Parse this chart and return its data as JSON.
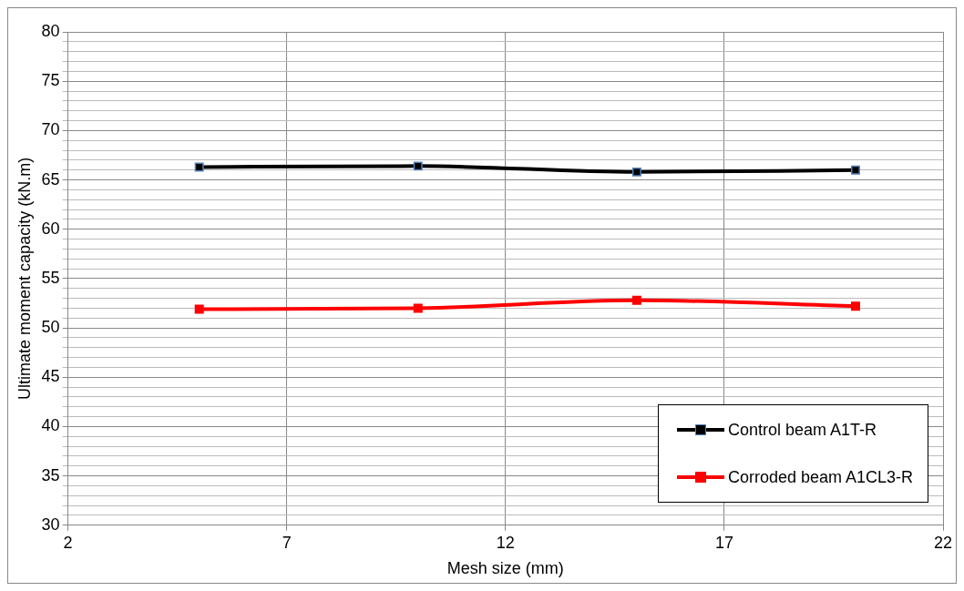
{
  "chart_data": {
    "type": "line",
    "xlabel": "Mesh size (mm)",
    "ylabel": "Ultimate moment capacity (kN.m)",
    "x": [
      5,
      10,
      15,
      20
    ],
    "series": [
      {
        "name": "Control beam A1T-R",
        "color": "#000000",
        "values": [
          66.3,
          66.4,
          65.8,
          66.0
        ]
      },
      {
        "name": "Corroded beam A1CL3-R",
        "color": "#ff0000",
        "values": [
          51.9,
          52.0,
          52.8,
          52.2
        ]
      }
    ],
    "xlim": [
      2,
      22
    ],
    "xticks": [
      2,
      7,
      12,
      17,
      22
    ],
    "ylim": [
      30,
      80
    ],
    "yticks": [
      30,
      {
        "value": 31,
        "label": null
      },
      {
        "value": 32,
        "label": null
      },
      {
        "value": 33,
        "label": null
      },
      {
        "value": 34,
        "label": null
      },
      35,
      {
        "value": 36,
        "label": null
      },
      {
        "value": 37,
        "label": null
      },
      {
        "value": 38,
        "label": null
      },
      {
        "value": 39,
        "label": null
      },
      40,
      {
        "value": 41,
        "label": null
      },
      {
        "value": 42,
        "label": null
      },
      {
        "value": 43,
        "label": null
      },
      {
        "value": 44,
        "label": null
      },
      45,
      {
        "value": 46,
        "label": null
      },
      {
        "value": 47,
        "label": null
      },
      {
        "value": 48,
        "label": null
      },
      {
        "value": 49,
        "label": null
      },
      50,
      {
        "value": 51,
        "label": null
      },
      {
        "value": 52,
        "label": null
      },
      {
        "value": 53,
        "label": null
      },
      {
        "value": 54,
        "label": null
      },
      55,
      {
        "value": 56,
        "label": null
      },
      {
        "value": 57,
        "label": null
      },
      {
        "value": 58,
        "label": null
      },
      {
        "value": 59,
        "label": null
      },
      60,
      {
        "value": 61,
        "label": null
      },
      {
        "value": 62,
        "label": null
      },
      {
        "value": 63,
        "label": null
      },
      {
        "value": 64,
        "label": null
      },
      65,
      {
        "value": 66,
        "label": null
      },
      {
        "value": 67,
        "label": null
      },
      {
        "value": 68,
        "label": null
      },
      {
        "value": 69,
        "label": null
      },
      70,
      {
        "value": 71,
        "label": null
      },
      {
        "value": 72,
        "label": null
      },
      {
        "value": 73,
        "label": null
      },
      {
        "value": 74,
        "label": null
      },
      75,
      {
        "value": 76,
        "label": null
      },
      {
        "value": 77,
        "label": null
      },
      {
        "value": 78,
        "label": null
      },
      {
        "value": 79,
        "label": null
      },
      80
    ],
    "grid": true,
    "legend": "bottom right",
    "marker": "square",
    "line_style": "solid"
  }
}
